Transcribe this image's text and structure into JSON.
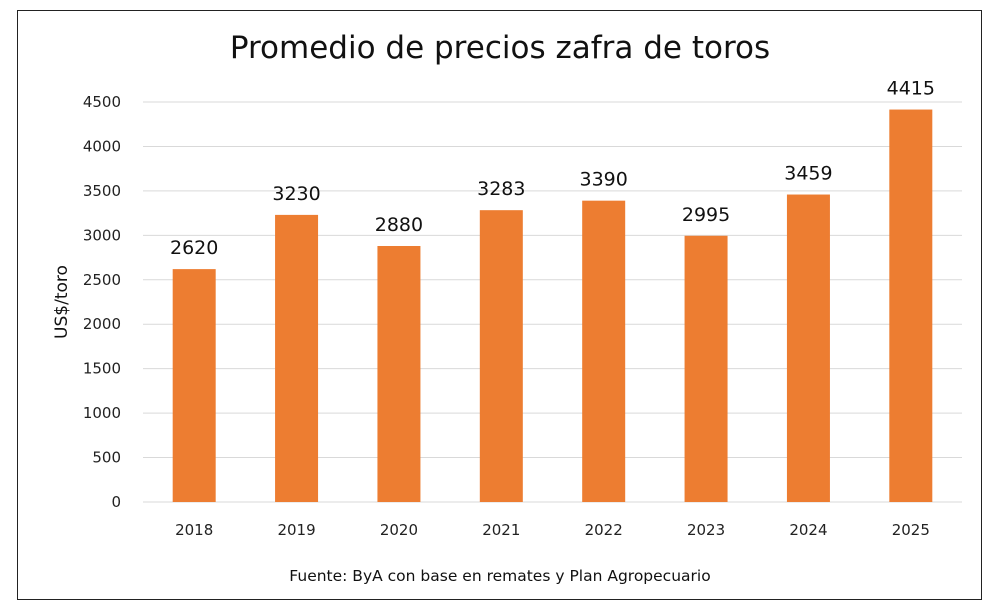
{
  "chart_data": {
    "type": "bar",
    "title": "Promedio de precios zafra de toros",
    "ylabel": "US$/toro",
    "xlabel": "",
    "categories": [
      "2018",
      "2019",
      "2020",
      "2021",
      "2022",
      "2023",
      "2024",
      "2025"
    ],
    "values": [
      2620,
      3230,
      2880,
      3283,
      3390,
      2995,
      3459,
      4415
    ],
    "ylim": [
      0,
      4500
    ],
    "yticks": [
      0,
      500,
      1000,
      1500,
      2000,
      2500,
      3000,
      3500,
      4000,
      4500
    ],
    "grid": true,
    "legend": "none",
    "bar_color": "#ED7D31",
    "source": "Fuente: ByA con base en remates y Plan Agropecuario"
  }
}
